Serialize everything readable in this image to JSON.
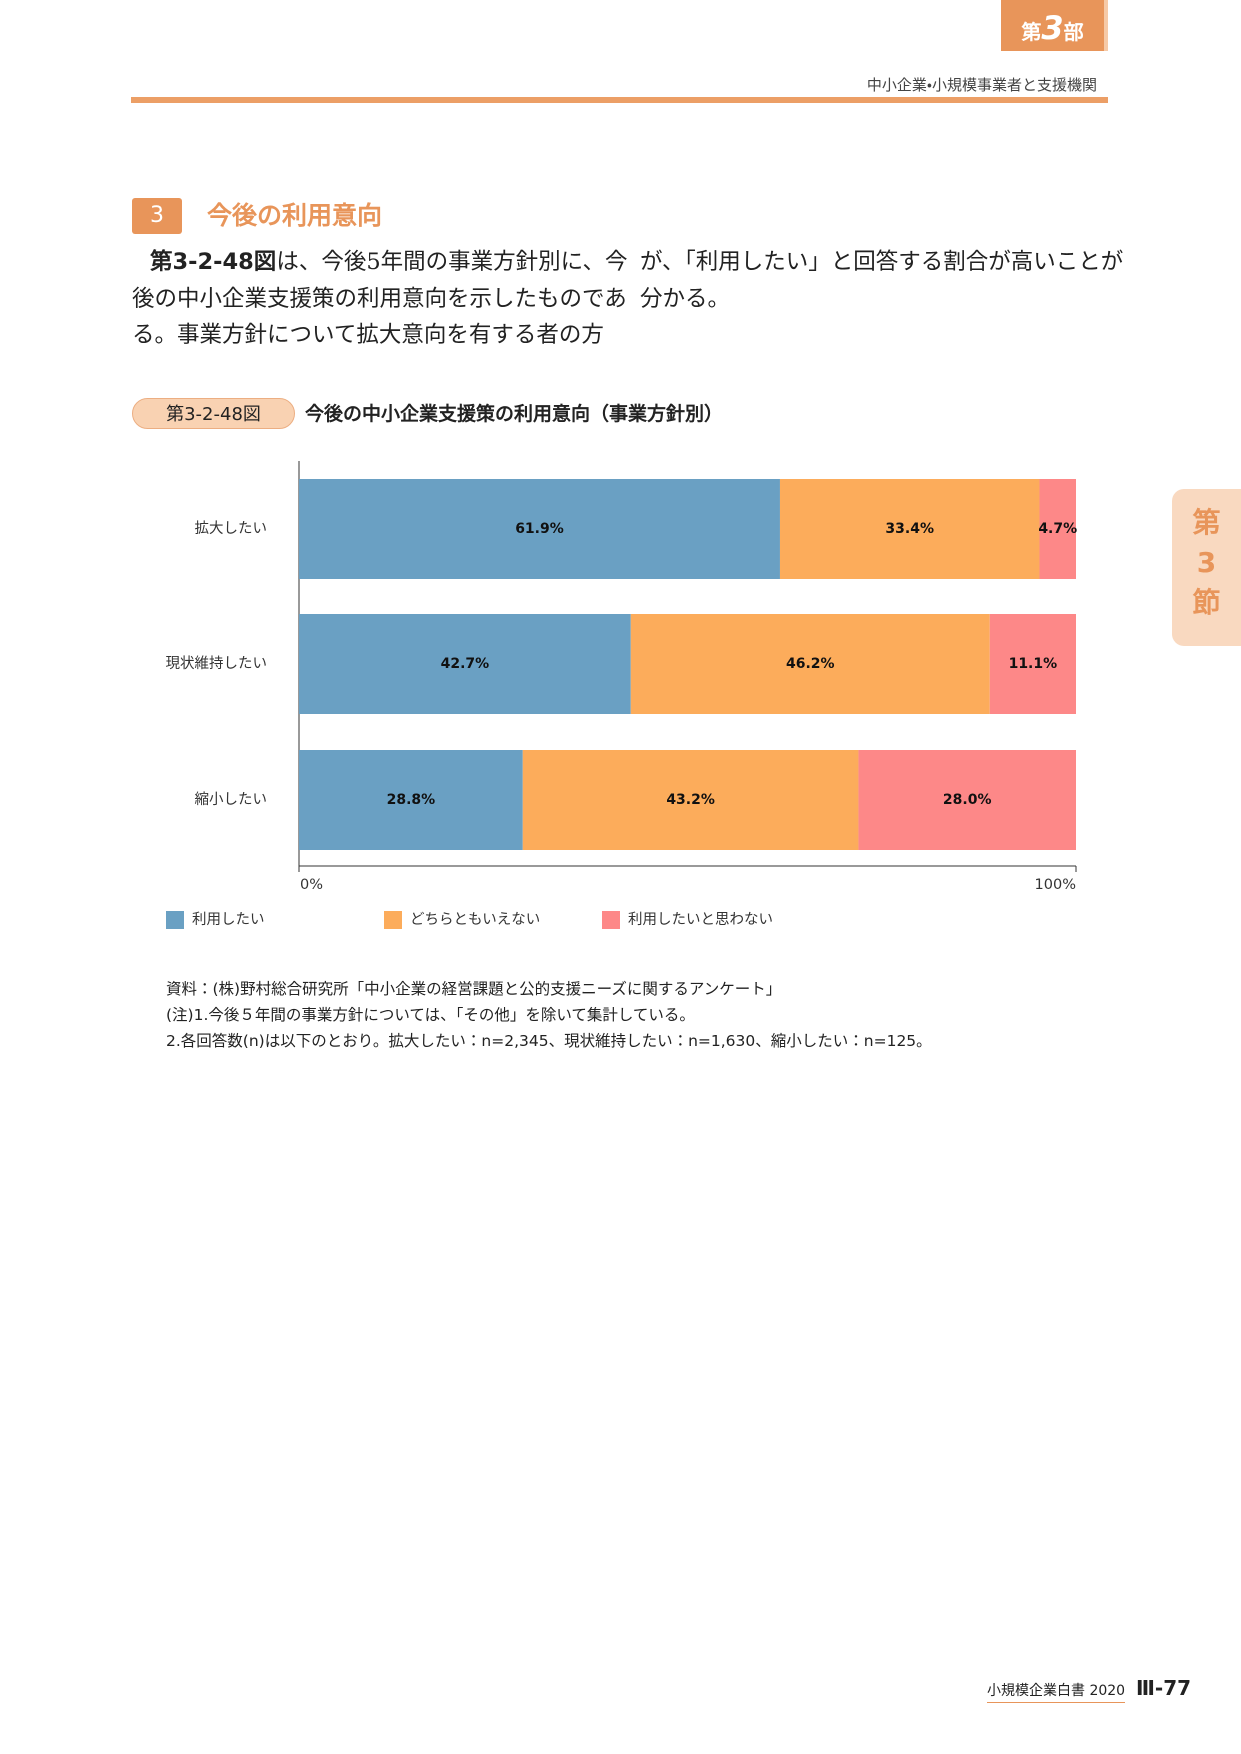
{
  "header": {
    "part": {
      "prefix": "第",
      "number": "3",
      "suffix": "部"
    },
    "running_title": "中小企業・小規模事業者と支援機関"
  },
  "side_tab": {
    "prefix": "第",
    "number": "3",
    "suffix": "節"
  },
  "section": {
    "number": "3",
    "title": "今後の利用意向"
  },
  "body": {
    "figure_ref": "第3-2-48図",
    "column1": [
      "は、今後5年間の事業方針別に、今",
      "後の中小企業支援策の利用意向を示したものであ",
      "る。事業方針について拡大意向を有する者の方"
    ],
    "column2": [
      "が、「利用したい」と回答する割合が高いことが",
      "分かる。"
    ]
  },
  "figure": {
    "label": "第3-2-48図",
    "title": "今後の中小企業支援策の利用意向（事業方針別）"
  },
  "chart_data": {
    "type": "bar",
    "orientation": "horizontal",
    "stacked": true,
    "categories": [
      "拡大したい",
      "現状維持したい",
      "縮小したい"
    ],
    "series": [
      {
        "name": "利用したい",
        "color": "#6aa0c3",
        "values": [
          61.9,
          42.7,
          28.8
        ],
        "value_labels": [
          "61.9%",
          "42.7%",
          "28.8%"
        ]
      },
      {
        "name": "どちらともいえない",
        "color": "#fcac5b",
        "values": [
          33.4,
          46.2,
          43.2
        ],
        "value_labels": [
          "33.4%",
          "46.2%",
          "43.2%"
        ]
      },
      {
        "name": "利用したいと思わない",
        "color": "#fd8888",
        "values": [
          4.7,
          11.1,
          28.0
        ],
        "value_labels": [
          "4.7%",
          "11.1%",
          "28.0%"
        ]
      }
    ],
    "xlim": [
      0,
      100
    ],
    "xticks": [
      {
        "value": 0,
        "label": "0%"
      },
      {
        "value": 100,
        "label": "100%"
      }
    ],
    "grid": false,
    "legend": "bottom"
  },
  "notes": {
    "source": "資料：(株)野村総合研究所「中小企業の経営課題と公的支援ニーズに関するアンケート」",
    "note1": "(注)1.今後５年間の事業方針については、「その他」を除いて集計している。",
    "note2": "2.各回答数(n)は以下のとおり。拡大したい：n=2,345、現状維持したい：n=1,630、縮小したい：n=125。"
  },
  "footer": {
    "book": "小規模企業白書",
    "year": "2020",
    "page": "Ⅲ-77"
  }
}
